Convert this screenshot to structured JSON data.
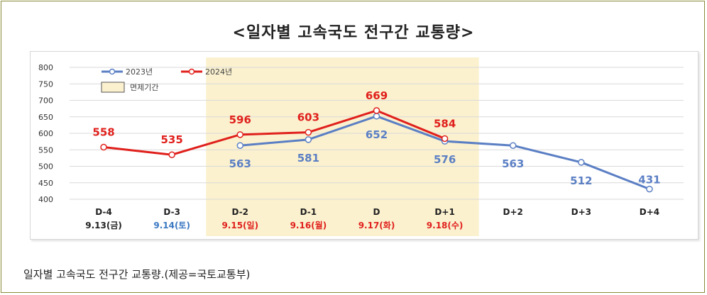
{
  "page": {
    "title": "<일자별 고속국도 전구간 교통량>",
    "caption": "일자별 고속국도 전구간 교통량.(제공=국토교통부)"
  },
  "legend": {
    "series_2023": "2023년",
    "series_2024": "2024년",
    "toll_free": "면제기간"
  },
  "colors": {
    "series_2023": "#5b7fc4",
    "series_2024": "#e0201c",
    "toll_free_band": "#fbf1cf",
    "date_black": "#222222",
    "date_blue": "#3a78c2",
    "date_red": "#e0201c"
  },
  "chart_data": {
    "type": "line",
    "title": "<일자별 고속국도 전구간 교통량>",
    "categories": [
      "D-4",
      "D-3",
      "D-2",
      "D-1",
      "D",
      "D+1",
      "D+2",
      "D+3",
      "D+4"
    ],
    "dates": [
      "9.13(금)",
      "9.14(토)",
      "9.15(일)",
      "9.16(월)",
      "9.17(화)",
      "9.18(수)",
      "",
      "",
      ""
    ],
    "date_colors": [
      "date_black",
      "date_blue",
      "date_red",
      "date_red",
      "date_red",
      "date_red",
      "",
      "",
      ""
    ],
    "ylim": [
      400,
      800
    ],
    "yticks": [
      400,
      450,
      500,
      550,
      600,
      650,
      700,
      750,
      800
    ],
    "grid": true,
    "legend_position": "top-left",
    "shaded_range": {
      "label": "면제기간",
      "from": "D-2",
      "to": "D+1"
    },
    "series": [
      {
        "name": "2023년",
        "color": "series_2023",
        "values": [
          null,
          null,
          563,
          581,
          652,
          576,
          563,
          512,
          431
        ]
      },
      {
        "name": "2024년",
        "color": "series_2024",
        "values": [
          558,
          535,
          596,
          603,
          669,
          584,
          null,
          null,
          null
        ]
      }
    ]
  }
}
